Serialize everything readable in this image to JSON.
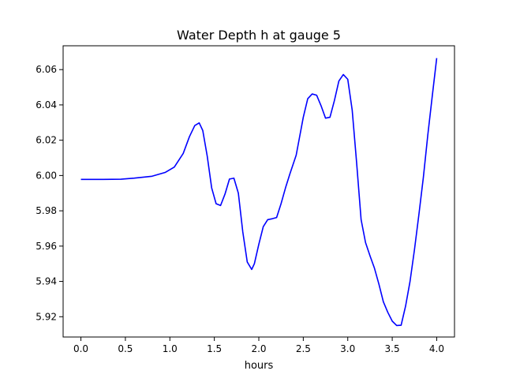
{
  "chart_data": {
    "type": "line",
    "title": "Water Depth h at gauge 5",
    "xlabel": "hours",
    "ylabel": "",
    "xlim": [
      -0.2,
      4.2
    ],
    "ylim": [
      5.9085,
      6.0735
    ],
    "xticks": [
      0.0,
      0.5,
      1.0,
      1.5,
      2.0,
      2.5,
      3.0,
      3.5,
      4.0
    ],
    "xtick_labels": [
      "0.0",
      "0.5",
      "1.0",
      "1.5",
      "2.0",
      "2.5",
      "3.0",
      "3.5",
      "4.0"
    ],
    "yticks": [
      5.92,
      5.94,
      5.96,
      5.98,
      6.0,
      6.02,
      6.04,
      6.06
    ],
    "ytick_labels": [
      "5.92",
      "5.94",
      "5.96",
      "5.98",
      "6.00",
      "6.02",
      "6.04",
      "6.06"
    ],
    "grid": false,
    "legend": false,
    "series": [
      {
        "color": "#0000ff",
        "x": [
          0.0,
          0.25,
          0.45,
          0.6,
          0.8,
          0.95,
          1.05,
          1.15,
          1.22,
          1.28,
          1.33,
          1.37,
          1.42,
          1.47,
          1.52,
          1.57,
          1.62,
          1.67,
          1.72,
          1.77,
          1.82,
          1.87,
          1.92,
          1.95,
          2.0,
          2.05,
          2.1,
          2.15,
          2.2,
          2.25,
          2.3,
          2.35,
          2.42,
          2.5,
          2.55,
          2.6,
          2.65,
          2.7,
          2.75,
          2.8,
          2.85,
          2.9,
          2.95,
          3.0,
          3.05,
          3.1,
          3.15,
          3.2,
          3.25,
          3.3,
          3.35,
          3.4,
          3.45,
          3.5,
          3.55,
          3.6,
          3.65,
          3.7,
          3.75,
          3.8,
          3.85,
          3.9,
          3.95,
          4.0
        ],
        "y": [
          5.9978,
          5.9978,
          5.9979,
          5.9985,
          5.9996,
          6.0018,
          6.0048,
          6.0125,
          6.022,
          6.0283,
          6.0298,
          6.0255,
          6.011,
          5.993,
          5.984,
          5.983,
          5.9895,
          5.998,
          5.9985,
          5.99,
          5.968,
          5.951,
          5.9468,
          5.95,
          5.961,
          5.971,
          5.975,
          5.9755,
          5.9762,
          5.984,
          5.993,
          6.001,
          6.0115,
          6.033,
          6.0435,
          6.0462,
          6.0455,
          6.0395,
          6.0325,
          6.033,
          6.0425,
          6.0535,
          6.0572,
          6.0545,
          6.037,
          6.007,
          5.975,
          5.962,
          5.9545,
          5.9475,
          5.9385,
          5.9285,
          5.9225,
          5.9175,
          5.915,
          5.9152,
          5.926,
          5.94,
          5.958,
          5.978,
          5.999,
          6.023,
          6.045,
          6.0665
        ]
      }
    ]
  }
}
